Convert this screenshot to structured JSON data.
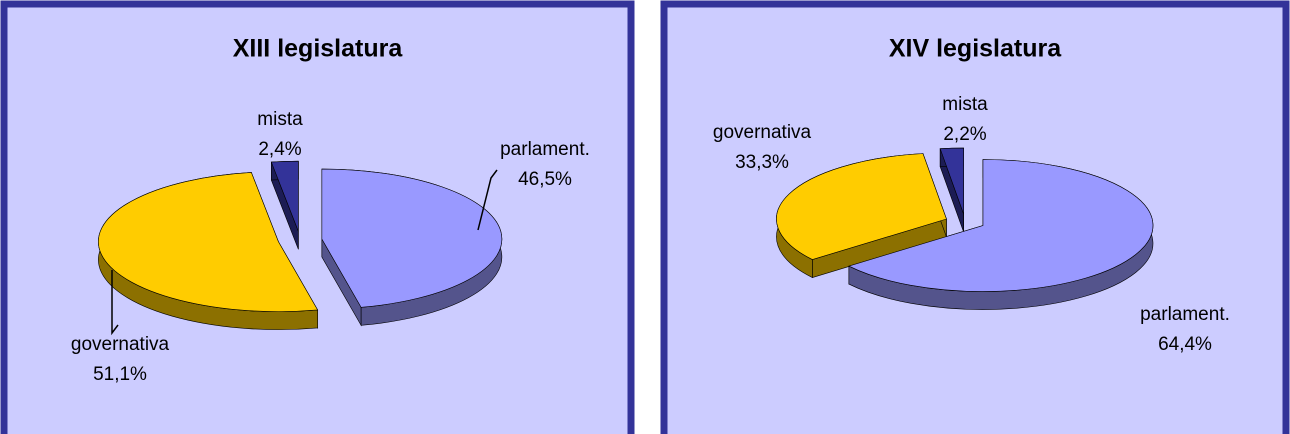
{
  "chart_data": [
    {
      "type": "pie",
      "title": "XIII legislatura",
      "categories": [
        "parlament.",
        "governativa",
        "mista"
      ],
      "values": [
        46.5,
        51.1,
        2.4
      ],
      "value_labels": [
        "46,5%",
        "51,1%",
        "2,4%"
      ],
      "colors": [
        "#9999ff",
        "#ffcc00",
        "#333399"
      ]
    },
    {
      "type": "pie",
      "title": "XIV legislatura",
      "categories": [
        "parlament.",
        "governativa",
        "mista"
      ],
      "values": [
        64.4,
        33.3,
        2.2
      ],
      "value_labels": [
        "64,4%",
        "33,3%",
        "2,2%"
      ],
      "colors": [
        "#9999ff",
        "#ffcc00",
        "#333399"
      ]
    }
  ]
}
